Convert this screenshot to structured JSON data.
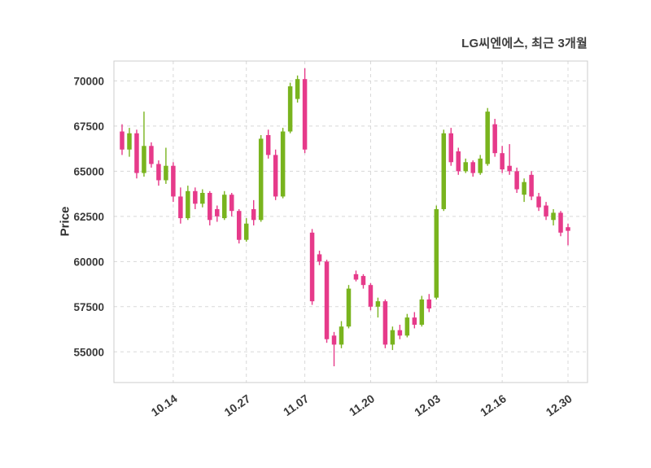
{
  "chart_data": {
    "type": "candlestick",
    "title": "LG씨엔에스, 최근 3개월",
    "ylabel": "Price",
    "xlabel": "",
    "y_ticks": [
      55000,
      57500,
      60000,
      62500,
      65000,
      67500,
      70000
    ],
    "x_ticks": [
      "10.14",
      "10.27",
      "11.07",
      "11.20",
      "12.03",
      "12.16",
      "12.30"
    ],
    "ylim": [
      53300,
      71100
    ],
    "grid": "dashed-both-axes",
    "legend": "none",
    "colors": {
      "up": "#79b41e",
      "down": "#e63a8a",
      "grid": "#d8d8d8",
      "frame": "#cccccc",
      "text": "#3a3a3a",
      "background": "#ffffff"
    },
    "columns": [
      "date",
      "open",
      "high",
      "low",
      "close"
    ],
    "candles": [
      [
        "10.01",
        67200,
        67600,
        65900,
        66200
      ],
      [
        "10.02",
        66200,
        67400,
        65800,
        67100
      ],
      [
        "10.04",
        67100,
        67300,
        64600,
        64900
      ],
      [
        "10.07",
        64900,
        68300,
        64700,
        66400
      ],
      [
        "10.08",
        66400,
        66600,
        65200,
        65400
      ],
      [
        "10.10",
        65400,
        65600,
        64200,
        64500
      ],
      [
        "10.11",
        64500,
        66300,
        64300,
        65300
      ],
      [
        "10.14",
        65300,
        65500,
        63300,
        63600
      ],
      [
        "10.15",
        63600,
        64100,
        62100,
        62400
      ],
      [
        "10.16",
        62400,
        64200,
        62300,
        63900
      ],
      [
        "10.17",
        63900,
        64100,
        62900,
        63200
      ],
      [
        "10.18",
        63200,
        64000,
        63000,
        63800
      ],
      [
        "10.21",
        63800,
        63900,
        62000,
        62300
      ],
      [
        "10.22",
        62900,
        63100,
        62200,
        62500
      ],
      [
        "10.23",
        62400,
        63900,
        62300,
        63700
      ],
      [
        "10.24",
        63700,
        63800,
        62500,
        62800
      ],
      [
        "10.25",
        62800,
        62900,
        61000,
        61200
      ],
      [
        "10.27",
        61200,
        62400,
        61100,
        62100
      ],
      [
        "10.29",
        62900,
        63400,
        62000,
        62300
      ],
      [
        "10.30",
        62300,
        67000,
        62200,
        66800
      ],
      [
        "10.31",
        67000,
        67300,
        65700,
        65900
      ],
      [
        "11.01",
        65900,
        66200,
        63400,
        63600
      ],
      [
        "11.04",
        63600,
        67400,
        63500,
        67200
      ],
      [
        "11.05",
        67200,
        69900,
        67100,
        69700
      ],
      [
        "11.06",
        69000,
        70300,
        68800,
        70100
      ],
      [
        "11.07",
        70100,
        70700,
        66000,
        66200
      ],
      [
        "11.08",
        61600,
        61800,
        57600,
        57800
      ],
      [
        "11.11",
        60400,
        60600,
        59800,
        60000
      ],
      [
        "11.12",
        60000,
        60100,
        55500,
        55700
      ],
      [
        "11.13",
        55900,
        56100,
        54200,
        55400
      ],
      [
        "11.14",
        55400,
        56700,
        55200,
        56400
      ],
      [
        "11.15",
        56400,
        58700,
        56300,
        58500
      ],
      [
        "11.18",
        59300,
        59500,
        58900,
        59000
      ],
      [
        "11.19",
        59200,
        59300,
        58500,
        58700
      ],
      [
        "11.20",
        58700,
        58800,
        57300,
        57500
      ],
      [
        "11.21",
        57500,
        58000,
        56900,
        57800
      ],
      [
        "11.22",
        57800,
        57900,
        55200,
        55400
      ],
      [
        "11.25",
        55400,
        56400,
        55100,
        56200
      ],
      [
        "11.26",
        56200,
        56500,
        55700,
        55900
      ],
      [
        "11.27",
        55900,
        57100,
        55800,
        56900
      ],
      [
        "11.28",
        56900,
        57200,
        56300,
        56500
      ],
      [
        "11.29",
        56500,
        58100,
        56400,
        57900
      ],
      [
        "12.02",
        57900,
        58200,
        57200,
        57400
      ],
      [
        "12.03",
        58000,
        63100,
        57900,
        62900
      ],
      [
        "12.04",
        62900,
        67300,
        62800,
        67100
      ],
      [
        "12.05",
        67100,
        67400,
        65300,
        65500
      ],
      [
        "12.06",
        66100,
        66300,
        64800,
        65000
      ],
      [
        "12.09",
        65000,
        65700,
        64900,
        65500
      ],
      [
        "12.10",
        65500,
        65600,
        64700,
        64900
      ],
      [
        "12.11",
        64900,
        65900,
        64800,
        65700
      ],
      [
        "12.12",
        65400,
        68500,
        65300,
        68300
      ],
      [
        "12.13",
        67600,
        67900,
        65800,
        66000
      ],
      [
        "12.16",
        66000,
        66400,
        64900,
        65100
      ],
      [
        "12.17",
        65300,
        66500,
        64800,
        65000
      ],
      [
        "12.18",
        65000,
        65200,
        63800,
        64000
      ],
      [
        "12.19",
        63700,
        64600,
        63300,
        64400
      ],
      [
        "12.20",
        64800,
        65000,
        63400,
        63600
      ],
      [
        "12.23",
        63600,
        63800,
        62800,
        63000
      ],
      [
        "12.24",
        63100,
        63300,
        62300,
        62500
      ],
      [
        "12.26",
        62300,
        62900,
        62000,
        62700
      ],
      [
        "12.27",
        62700,
        62800,
        61400,
        61600
      ],
      [
        "12.30",
        61900,
        62100,
        60900,
        61700
      ]
    ]
  }
}
